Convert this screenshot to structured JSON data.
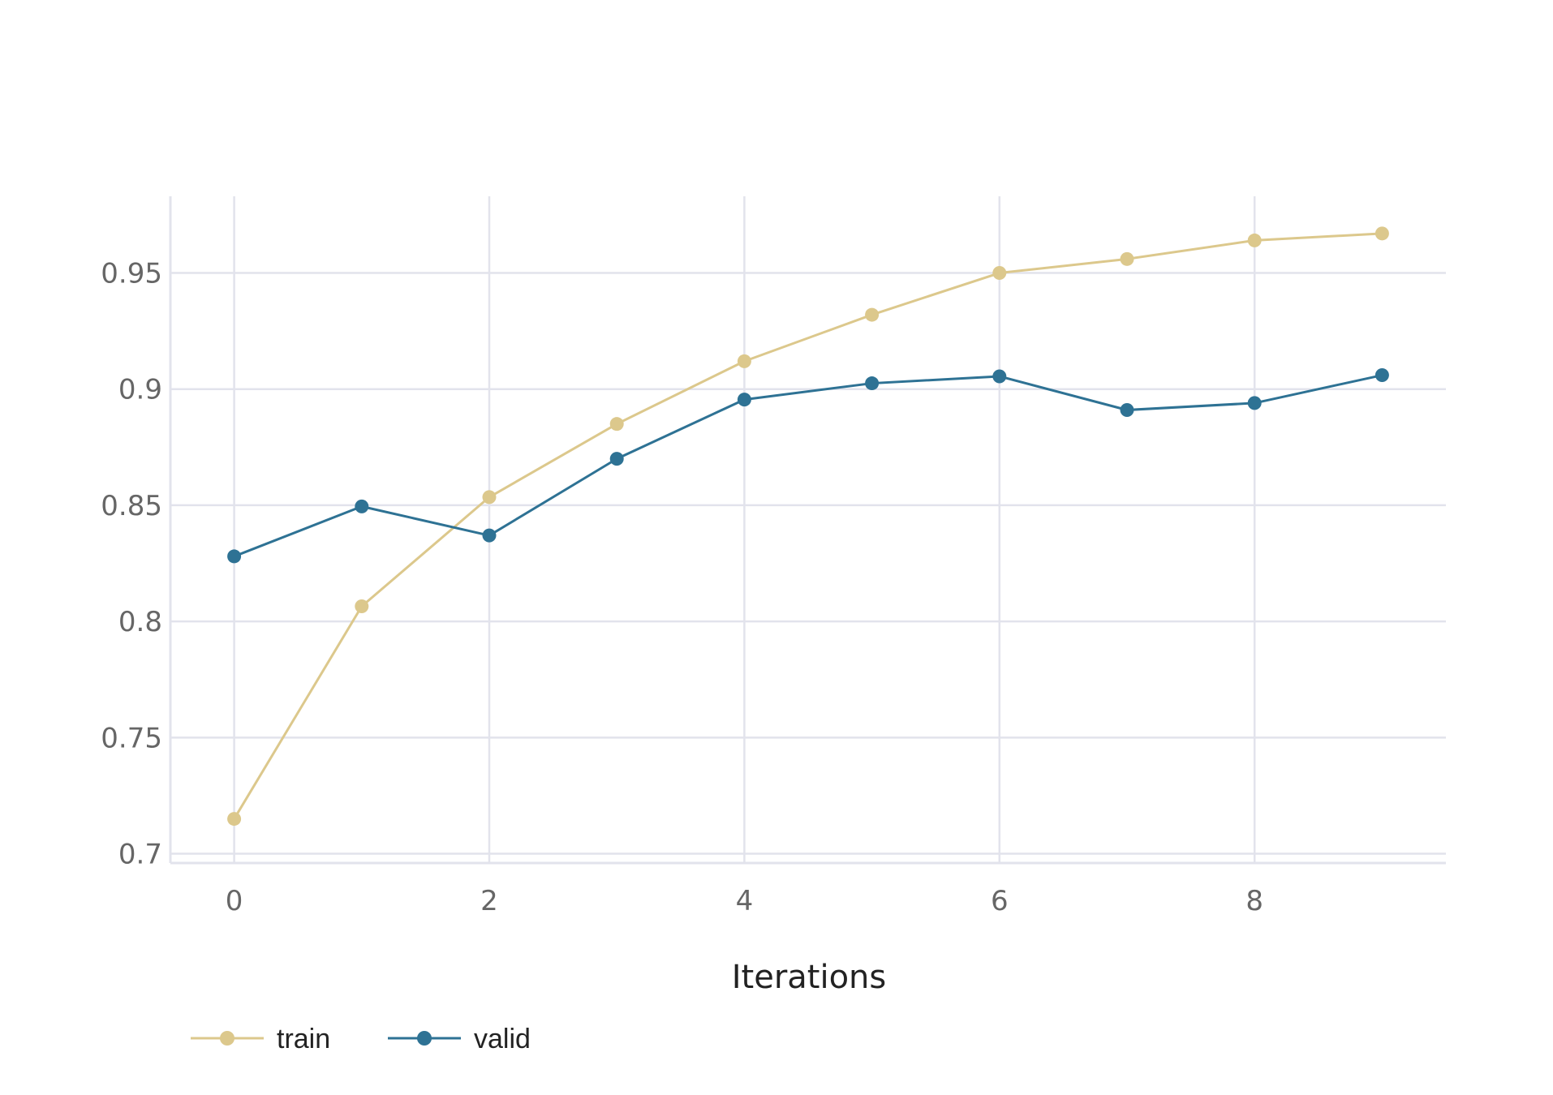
{
  "chart_data": {
    "type": "line",
    "title": "",
    "xlabel": "Iterations",
    "ylabel": "",
    "x": [
      0,
      1,
      2,
      3,
      4,
      5,
      6,
      7,
      8,
      9
    ],
    "xlim": [
      -0.5,
      9.5
    ],
    "ylim": [
      0.696,
      0.983
    ],
    "xticks": [
      "0",
      "2",
      "4",
      "6",
      "8"
    ],
    "yticks": [
      "0.7",
      "0.75",
      "0.8",
      "0.85",
      "0.9",
      "0.95"
    ],
    "grid": true,
    "legend_position": "bottom-left",
    "series": [
      {
        "name": "train",
        "color": "#dcc88c",
        "values": [
          0.715,
          0.8065,
          0.8535,
          0.885,
          0.912,
          0.932,
          0.95,
          0.956,
          0.964,
          0.967
        ]
      },
      {
        "name": "valid",
        "color": "#2e7294",
        "values": [
          0.828,
          0.8495,
          0.837,
          0.87,
          0.8955,
          0.9025,
          0.9055,
          0.891,
          0.894,
          0.906
        ]
      }
    ]
  }
}
